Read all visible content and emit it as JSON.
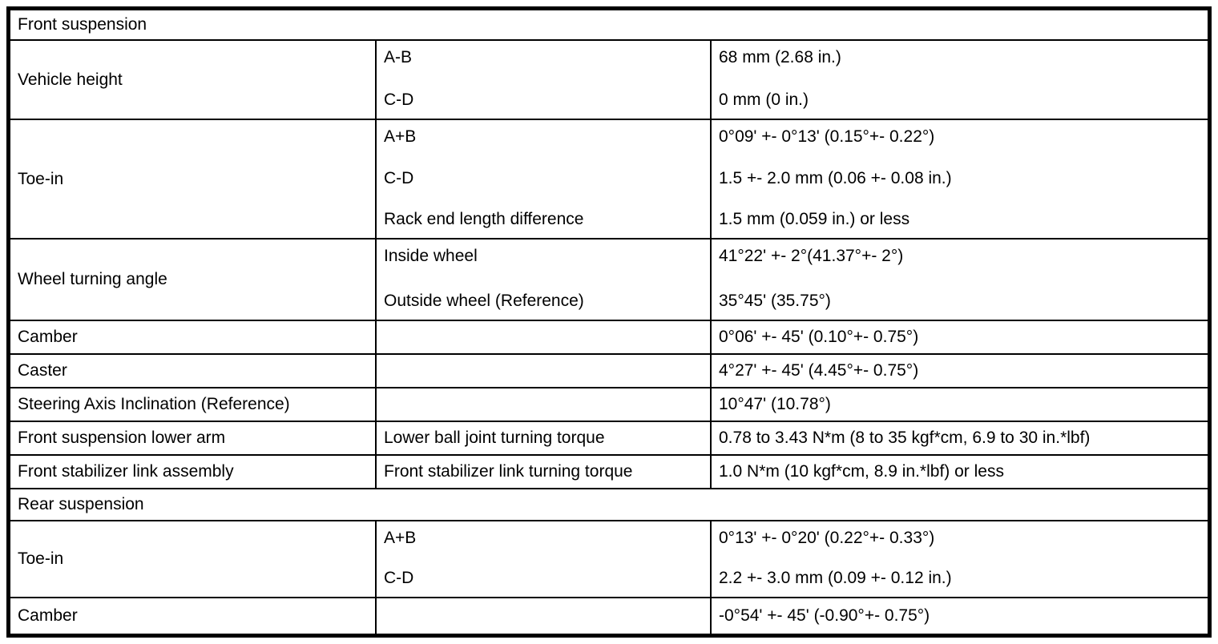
{
  "table": {
    "sections": [
      {
        "header": "Front suspension",
        "rows": [
          {
            "item": "Vehicle height",
            "sub": [
              "A-B",
              "C-D"
            ],
            "values": [
              "68 mm (2.68 in.)",
              "0 mm (0 in.)"
            ]
          },
          {
            "item": "Toe-in",
            "sub": [
              "A+B",
              "C-D",
              "Rack end length difference"
            ],
            "values": [
              "0°09' +- 0°13' (0.15°+- 0.22°)",
              "1.5 +- 2.0 mm (0.06 +- 0.08 in.)",
              "1.5 mm (0.059 in.) or less"
            ]
          },
          {
            "item": "Wheel turning angle",
            "sub": [
              "Inside wheel",
              "Outside wheel (Reference)"
            ],
            "values": [
              "41°22' +- 2°(41.37°+- 2°)",
              "35°45' (35.75°)"
            ]
          },
          {
            "item": "Camber",
            "sub": [],
            "values": [
              "0°06' +- 45' (0.10°+- 0.75°)"
            ]
          },
          {
            "item": "Caster",
            "sub": [],
            "values": [
              "4°27' +- 45' (4.45°+- 0.75°)"
            ]
          },
          {
            "item": "Steering Axis Inclination (Reference)",
            "sub": [],
            "values": [
              "10°47' (10.78°)"
            ]
          },
          {
            "item": "Front suspension lower arm",
            "sub": [
              "Lower ball joint turning torque"
            ],
            "values": [
              "0.78 to 3.43 N*m (8 to 35 kgf*cm, 6.9 to 30 in.*lbf)"
            ]
          },
          {
            "item": "Front stabilizer link assembly",
            "sub": [
              "Front stabilizer link turning torque"
            ],
            "values": [
              "1.0 N*m (10 kgf*cm, 8.9 in.*lbf) or less"
            ]
          }
        ]
      },
      {
        "header": "Rear suspension",
        "rows": [
          {
            "item": "Toe-in",
            "sub": [
              "A+B",
              "C-D"
            ],
            "values": [
              "0°13' +- 0°20' (0.22°+- 0.33°)",
              "2.2 +- 3.0 mm (0.09 +- 0.12 in.)"
            ]
          },
          {
            "item": "Camber",
            "sub": [],
            "values": [
              "-0°54' +- 45' (-0.90°+- 0.75°)"
            ]
          }
        ]
      }
    ]
  }
}
